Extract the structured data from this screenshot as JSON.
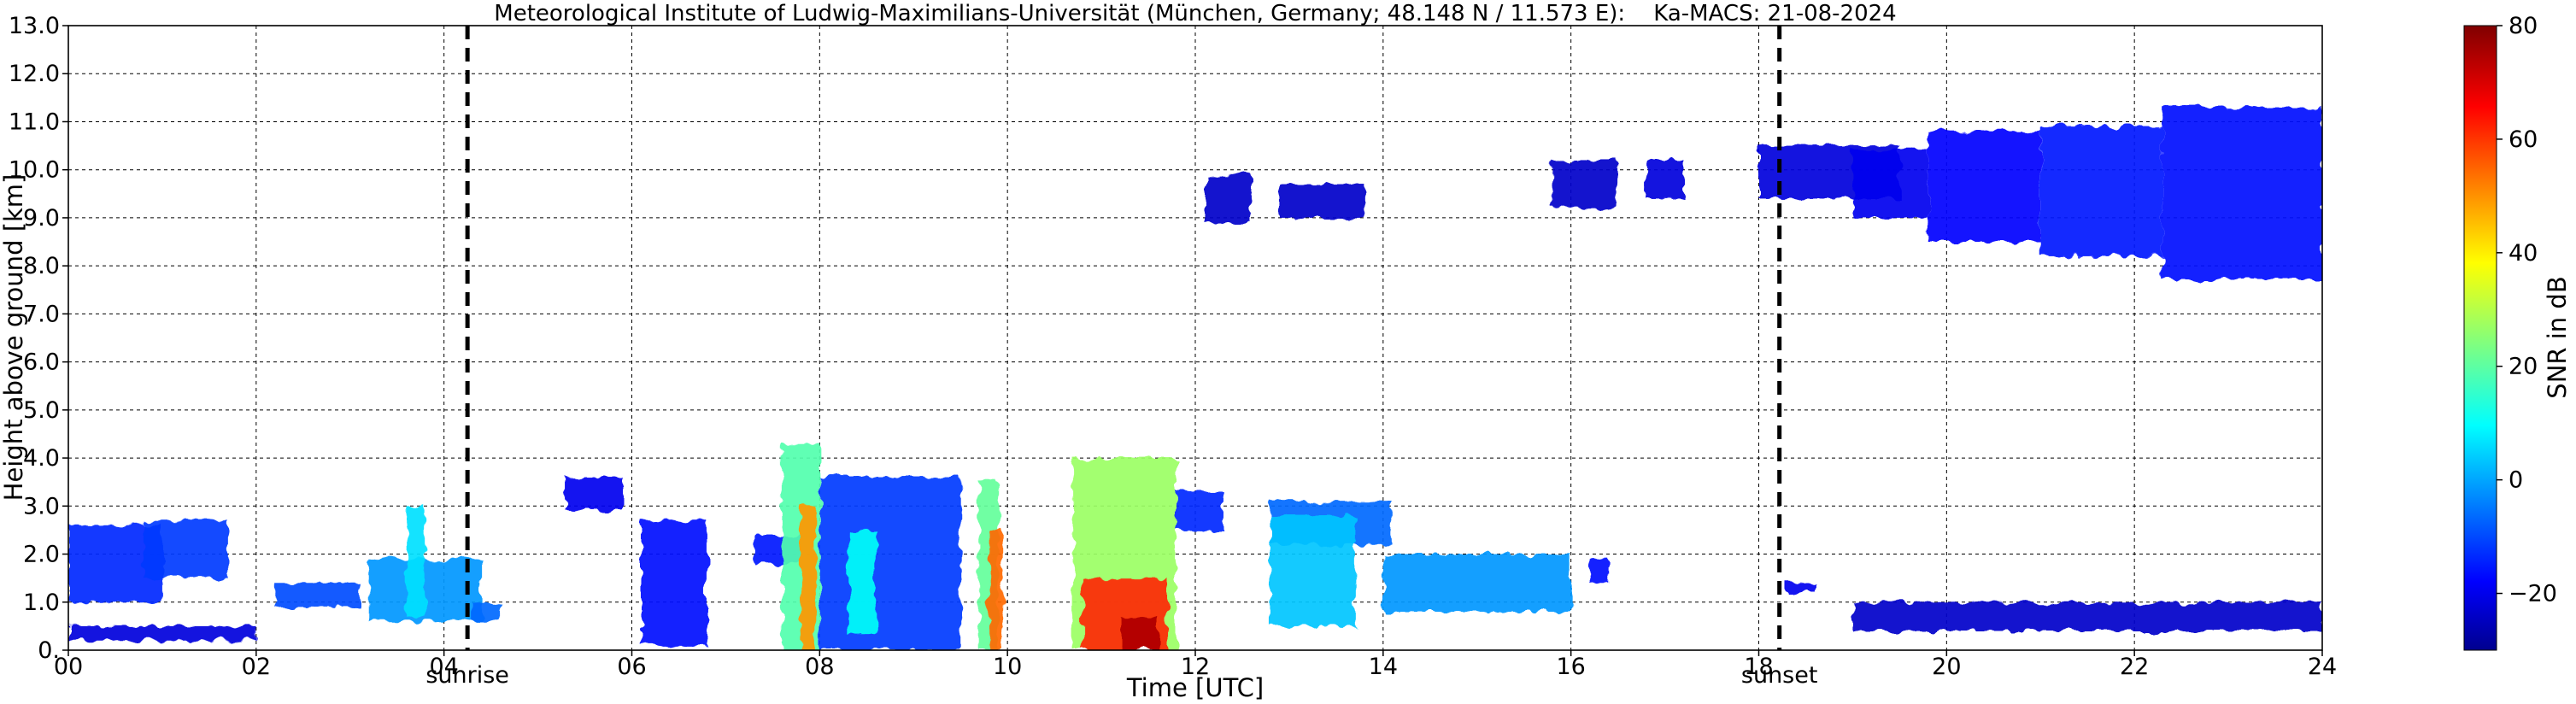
{
  "chart_data": {
    "type": "heatmap",
    "title": "Meteorological Institute of Ludwig-Maximilians-Universität (München, Germany; 48.148 N / 11.573 E):    Ka-MACS: 21-08-2024",
    "xlabel": "Time [UTC]",
    "ylabel": "Height above ground [km]",
    "xlim": [
      0,
      24
    ],
    "ylim": [
      0,
      13
    ],
    "x_ticks": [
      {
        "value": 0,
        "label": "00"
      },
      {
        "value": 2,
        "label": "02"
      },
      {
        "value": 4,
        "label": "04"
      },
      {
        "value": 6,
        "label": "06"
      },
      {
        "value": 8,
        "label": "08"
      },
      {
        "value": 10,
        "label": "10"
      },
      {
        "value": 12,
        "label": "12"
      },
      {
        "value": 14,
        "label": "14"
      },
      {
        "value": 16,
        "label": "16"
      },
      {
        "value": 18,
        "label": "18"
      },
      {
        "value": 20,
        "label": "20"
      },
      {
        "value": 22,
        "label": "22"
      },
      {
        "value": 24,
        "label": "24"
      }
    ],
    "y_ticks": [
      {
        "value": 0,
        "label": "0."
      },
      {
        "value": 1,
        "label": "1.0"
      },
      {
        "value": 2,
        "label": "2.0"
      },
      {
        "value": 3,
        "label": "3.0"
      },
      {
        "value": 4,
        "label": "4.0"
      },
      {
        "value": 5,
        "label": "5.0"
      },
      {
        "value": 6,
        "label": "6.0"
      },
      {
        "value": 7,
        "label": "7.0"
      },
      {
        "value": 8,
        "label": "8.0"
      },
      {
        "value": 9,
        "label": "9.0"
      },
      {
        "value": 10,
        "label": "10.0"
      },
      {
        "value": 11,
        "label": "11.0"
      },
      {
        "value": 12,
        "label": "12.0"
      },
      {
        "value": 13,
        "label": "13.0"
      }
    ],
    "grid": true,
    "grid_style": "dashed",
    "colormap": "jet",
    "colorbar": {
      "label": "SNR in dB",
      "range": [
        -30,
        80
      ],
      "ticks": [
        {
          "value": -20,
          "label": "−20"
        },
        {
          "value": 0,
          "label": "0"
        },
        {
          "value": 20,
          "label": "20"
        },
        {
          "value": 40,
          "label": "40"
        },
        {
          "value": 60,
          "label": "60"
        },
        {
          "value": 80,
          "label": "80"
        }
      ]
    },
    "vertical_markers": [
      {
        "time": 4.25,
        "label": "sunrise"
      },
      {
        "time": 18.22,
        "label": "sunset"
      }
    ],
    "echo_regions": [
      {
        "t0": 0.0,
        "t1": 1.0,
        "h0": 1.0,
        "h1": 2.6,
        "snr": -12
      },
      {
        "t0": 0.0,
        "t1": 2.0,
        "h0": 0.2,
        "h1": 0.5,
        "snr": -20
      },
      {
        "t0": 0.8,
        "t1": 1.7,
        "h0": 1.5,
        "h1": 2.7,
        "snr": -10
      },
      {
        "t0": 2.2,
        "t1": 3.1,
        "h0": 0.9,
        "h1": 1.4,
        "snr": -8
      },
      {
        "t0": 3.2,
        "t1": 4.4,
        "h0": 0.6,
        "h1": 1.9,
        "snr": 0
      },
      {
        "t0": 3.6,
        "t1": 3.8,
        "h0": 0.7,
        "h1": 3.0,
        "snr": 8
      },
      {
        "t0": 4.3,
        "t1": 4.6,
        "h0": 0.6,
        "h1": 1.0,
        "snr": -5
      },
      {
        "t0": 5.3,
        "t1": 5.9,
        "h0": 2.9,
        "h1": 3.6,
        "snr": -18
      },
      {
        "t0": 6.1,
        "t1": 6.8,
        "h0": 0.1,
        "h1": 2.7,
        "snr": -15
      },
      {
        "t0": 7.3,
        "t1": 7.8,
        "h0": 1.8,
        "h1": 2.4,
        "snr": -14
      },
      {
        "t0": 7.6,
        "t1": 8.0,
        "h0": 0.0,
        "h1": 4.3,
        "snr": 20
      },
      {
        "t0": 7.8,
        "t1": 7.95,
        "h0": 0.0,
        "h1": 3.0,
        "snr": 50
      },
      {
        "t0": 8.0,
        "t1": 9.5,
        "h0": 0.0,
        "h1": 3.6,
        "snr": -10
      },
      {
        "t0": 8.3,
        "t1": 8.6,
        "h0": 0.3,
        "h1": 2.5,
        "snr": 12
      },
      {
        "t0": 9.7,
        "t1": 9.9,
        "h0": 0.0,
        "h1": 3.5,
        "snr": 22
      },
      {
        "t0": 9.8,
        "t1": 9.95,
        "h0": 0.0,
        "h1": 2.5,
        "snr": 55
      },
      {
        "t0": 10.7,
        "t1": 11.8,
        "h0": 0.0,
        "h1": 4.0,
        "snr": 28
      },
      {
        "t0": 10.8,
        "t1": 11.7,
        "h0": 0.0,
        "h1": 1.5,
        "snr": 62
      },
      {
        "t0": 11.2,
        "t1": 11.6,
        "h0": 0.0,
        "h1": 0.7,
        "snr": 75
      },
      {
        "t0": 11.8,
        "t1": 12.3,
        "h0": 2.5,
        "h1": 3.3,
        "snr": -12
      },
      {
        "t0": 12.8,
        "t1": 14.1,
        "h0": 2.2,
        "h1": 3.1,
        "snr": -5
      },
      {
        "t0": 12.8,
        "t1": 13.7,
        "h0": 0.5,
        "h1": 2.8,
        "snr": 5
      },
      {
        "t0": 14.0,
        "t1": 16.0,
        "h0": 0.8,
        "h1": 2.0,
        "snr": 0
      },
      {
        "t0": 16.2,
        "t1": 16.4,
        "h0": 1.4,
        "h1": 1.9,
        "snr": -15
      },
      {
        "t0": 16.8,
        "t1": 17.2,
        "h0": 9.4,
        "h1": 10.2,
        "snr": -20
      },
      {
        "t0": 15.8,
        "t1": 16.5,
        "h0": 9.2,
        "h1": 10.2,
        "snr": -22
      },
      {
        "t0": 12.1,
        "t1": 12.6,
        "h0": 8.9,
        "h1": 9.9,
        "snr": -22
      },
      {
        "t0": 12.9,
        "t1": 13.8,
        "h0": 9.0,
        "h1": 9.7,
        "snr": -22
      },
      {
        "t0": 18.0,
        "t1": 19.5,
        "h0": 9.4,
        "h1": 10.5,
        "snr": -20
      },
      {
        "t0": 19.0,
        "t1": 19.8,
        "h0": 9.0,
        "h1": 10.4,
        "snr": -18
      },
      {
        "t0": 19.8,
        "t1": 21.0,
        "h0": 8.5,
        "h1": 10.8,
        "snr": -16
      },
      {
        "t0": 21.0,
        "t1": 22.3,
        "h0": 8.2,
        "h1": 10.9,
        "snr": -14
      },
      {
        "t0": 22.3,
        "t1": 24.0,
        "h0": 7.7,
        "h1": 11.3,
        "snr": -15
      },
      {
        "t0": 18.3,
        "t1": 18.6,
        "h0": 1.2,
        "h1": 1.4,
        "snr": -18
      },
      {
        "t0": 19.0,
        "t1": 24.0,
        "h0": 0.4,
        "h1": 1.0,
        "snr": -22
      }
    ]
  }
}
